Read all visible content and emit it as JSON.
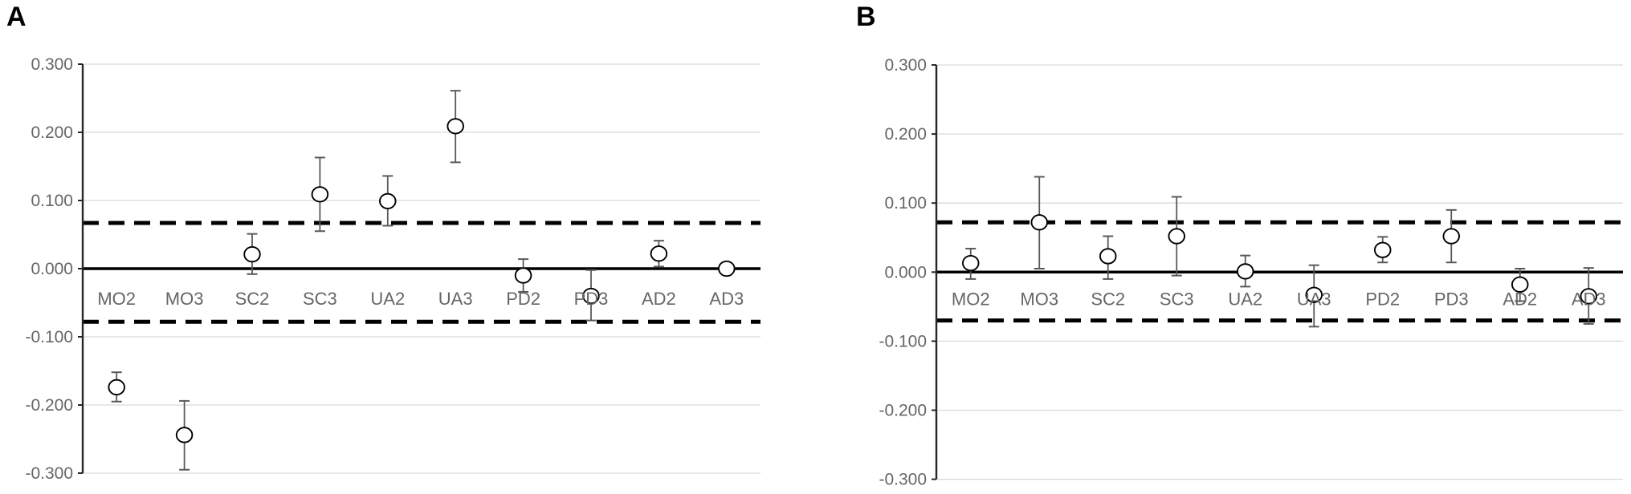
{
  "figure": {
    "background": "#ffffff",
    "panel_labels": [
      "A",
      "B"
    ]
  },
  "style": {
    "marker_stroke": "#000000",
    "marker_fill": "#ffffff",
    "errorbar_color": "#595959",
    "grid_color": "#d9d9d9",
    "axis_color": "#262626",
    "tick_label_color": "#666666",
    "category_label_color": "#666666",
    "zero_line_color": "#000000",
    "dashed_line_color": "#000000"
  },
  "chart_data": [
    {
      "type": "scatter",
      "panel": "A",
      "title": "",
      "xlabel": "",
      "ylabel": "",
      "legend": false,
      "grid": true,
      "ylim": [
        -0.3,
        0.3
      ],
      "ytick_labels": [
        "0.300",
        "0.200",
        "0.100",
        "0.000",
        "-0.100",
        "-0.200",
        "-0.300"
      ],
      "categories": [
        "MO2",
        "MO3",
        "SC2",
        "SC3",
        "UA2",
        "UA3",
        "PD2",
        "PD3",
        "AD2",
        "AD3"
      ],
      "values": [
        -0.174,
        -0.244,
        0.021,
        0.109,
        0.099,
        0.209,
        -0.01,
        -0.04,
        0.022,
        0.0
      ],
      "error_low": [
        -0.195,
        -0.295,
        -0.008,
        0.055,
        0.063,
        0.156,
        -0.034,
        -0.076,
        0.003,
        -0.006
      ],
      "error_high": [
        -0.152,
        -0.194,
        0.051,
        0.163,
        0.136,
        0.261,
        0.014,
        -0.002,
        0.041,
        0.006
      ],
      "ref_lines": {
        "solid_zero": 0.0,
        "dashed_upper": 0.067,
        "dashed_lower": -0.078
      }
    },
    {
      "type": "scatter",
      "panel": "B",
      "title": "",
      "xlabel": "",
      "ylabel": "",
      "legend": false,
      "grid": true,
      "ylim": [
        -0.3,
        0.3
      ],
      "ytick_labels": [
        "0.300",
        "0.200",
        "0.100",
        "0.000",
        "-0.100",
        "-0.200",
        "-0.300"
      ],
      "categories": [
        "MO2",
        "MO3",
        "SC2",
        "SC3",
        "UA2",
        "UA3",
        "PD2",
        "PD3",
        "AD2",
        "AD3"
      ],
      "values": [
        0.013,
        0.072,
        0.023,
        0.052,
        0.001,
        -0.033,
        0.032,
        0.052,
        -0.018,
        -0.035
      ],
      "error_low": [
        -0.01,
        0.005,
        -0.01,
        -0.005,
        -0.021,
        -0.079,
        0.014,
        0.014,
        -0.042,
        -0.075
      ],
      "error_high": [
        0.034,
        0.138,
        0.052,
        0.109,
        0.024,
        0.01,
        0.051,
        0.09,
        0.005,
        0.006
      ],
      "ref_lines": {
        "solid_zero": 0.0,
        "dashed_upper": 0.072,
        "dashed_lower": -0.07
      }
    }
  ]
}
